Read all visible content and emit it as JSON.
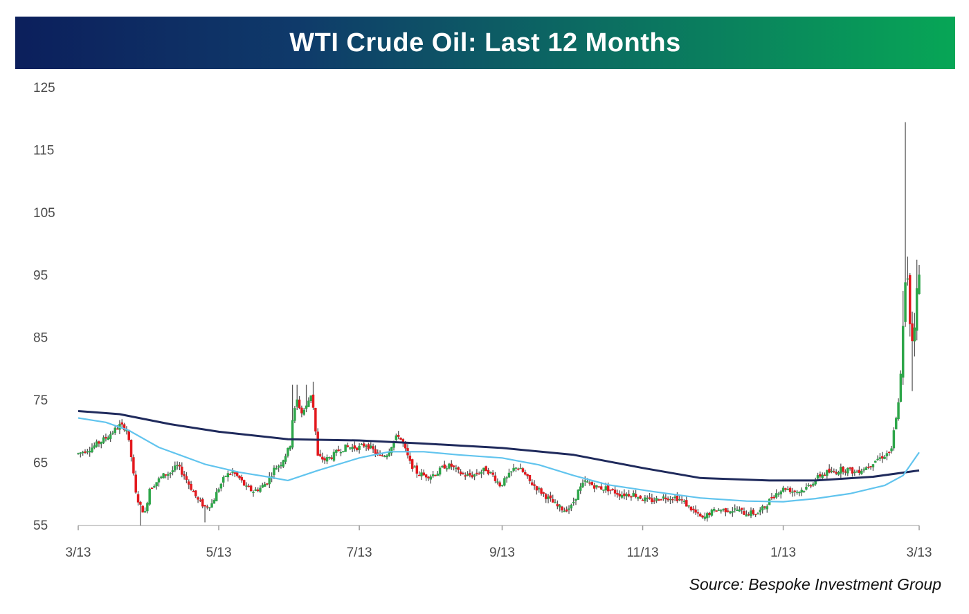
{
  "chart_data": {
    "type": "candlestick",
    "title": "WTI Crude Oil: Last 12 Months",
    "xlabel": "",
    "ylabel": "",
    "ylim": [
      55,
      125
    ],
    "yticks": [
      55,
      65,
      75,
      85,
      95,
      105,
      115,
      125
    ],
    "xticks": [
      {
        "label": "3/13",
        "day": 0
      },
      {
        "label": "5/13",
        "day": 61
      },
      {
        "label": "7/13",
        "day": 122
      },
      {
        "label": "9/13",
        "day": 184
      },
      {
        "label": "11/13",
        "day": 245
      },
      {
        "label": "1/13",
        "day": 306
      },
      {
        "label": "3/13",
        "day": 365
      }
    ],
    "grid": false,
    "colors": {
      "up": "#2ea64a",
      "down": "#e3191e",
      "wick": "#555555",
      "ma_long": "#1f2a5c",
      "ma_short": "#61c4ee"
    },
    "price_path": [
      [
        0,
        66.5
      ],
      [
        6,
        67.5
      ],
      [
        12,
        69
      ],
      [
        18,
        71
      ],
      [
        21,
        70.5
      ],
      [
        23,
        66
      ],
      [
        25,
        60
      ],
      [
        27,
        58
      ],
      [
        29,
        57
      ],
      [
        31,
        61
      ],
      [
        34,
        62
      ],
      [
        37,
        63
      ],
      [
        40,
        63.5
      ],
      [
        43,
        64.5
      ],
      [
        46,
        63
      ],
      [
        49,
        61
      ],
      [
        52,
        59
      ],
      [
        55,
        58
      ],
      [
        58,
        58.5
      ],
      [
        61,
        61
      ],
      [
        64,
        63
      ],
      [
        67,
        63.5
      ],
      [
        70,
        62.5
      ],
      [
        73,
        61
      ],
      [
        76,
        60.5
      ],
      [
        79,
        61
      ],
      [
        82,
        62
      ],
      [
        85,
        64
      ],
      [
        88,
        65
      ],
      [
        91,
        67
      ],
      [
        92,
        68
      ],
      [
        93,
        72
      ],
      [
        95,
        75
      ],
      [
        97,
        73
      ],
      [
        99,
        74
      ],
      [
        101,
        76
      ],
      [
        102,
        74
      ],
      [
        103,
        70
      ],
      [
        104,
        66
      ],
      [
        107,
        65.5
      ],
      [
        110,
        66
      ],
      [
        113,
        67
      ],
      [
        116,
        67.5
      ],
      [
        119,
        67.5
      ],
      [
        122,
        67.5
      ],
      [
        125,
        68
      ],
      [
        128,
        67
      ],
      [
        131,
        66
      ],
      [
        134,
        66.5
      ],
      [
        137,
        68.5
      ],
      [
        139,
        69.5
      ],
      [
        141,
        68
      ],
      [
        144,
        65
      ],
      [
        147,
        63.5
      ],
      [
        150,
        63
      ],
      [
        153,
        63
      ],
      [
        156,
        63.5
      ],
      [
        159,
        64.5
      ],
      [
        162,
        64.5
      ],
      [
        165,
        63.5
      ],
      [
        168,
        63
      ],
      [
        171,
        63
      ],
      [
        174,
        63.5
      ],
      [
        177,
        64
      ],
      [
        180,
        63
      ],
      [
        183,
        61.5
      ],
      [
        186,
        62.5
      ],
      [
        190,
        64.5
      ],
      [
        193,
        63.5
      ],
      [
        196,
        62
      ],
      [
        199,
        61
      ],
      [
        202,
        60
      ],
      [
        205,
        59
      ],
      [
        208,
        58
      ],
      [
        211,
        57.5
      ],
      [
        214,
        58
      ],
      [
        217,
        60.5
      ],
      [
        220,
        62
      ],
      [
        223,
        61.5
      ],
      [
        226,
        61
      ],
      [
        229,
        61
      ],
      [
        232,
        60.5
      ],
      [
        235,
        60
      ],
      [
        238,
        60
      ],
      [
        241,
        60
      ],
      [
        244,
        59.5
      ],
      [
        247,
        59
      ],
      [
        250,
        59
      ],
      [
        253,
        59.5
      ],
      [
        256,
        59.5
      ],
      [
        259,
        59.5
      ],
      [
        262,
        59
      ],
      [
        265,
        58
      ],
      [
        268,
        57
      ],
      [
        271,
        56
      ],
      [
        274,
        57
      ],
      [
        277,
        57.5
      ],
      [
        280,
        57.5
      ],
      [
        283,
        57.5
      ],
      [
        286,
        57.5
      ],
      [
        289,
        57
      ],
      [
        292,
        57
      ],
      [
        295,
        57
      ],
      [
        298,
        58
      ],
      [
        301,
        59.5
      ],
      [
        304,
        60.5
      ],
      [
        307,
        61
      ],
      [
        310,
        60.5
      ],
      [
        313,
        60.5
      ],
      [
        316,
        61
      ],
      [
        319,
        62
      ],
      [
        322,
        63
      ],
      [
        325,
        63.5
      ],
      [
        328,
        63.5
      ],
      [
        331,
        64
      ],
      [
        334,
        64
      ],
      [
        337,
        63.5
      ],
      [
        340,
        64
      ],
      [
        343,
        64.5
      ],
      [
        346,
        65.5
      ],
      [
        349,
        66
      ],
      [
        351,
        66.5
      ],
      [
        353,
        67
      ],
      [
        354,
        70
      ],
      [
        355,
        72
      ],
      [
        356,
        75
      ],
      [
        357,
        79
      ],
      [
        358,
        86
      ],
      [
        359,
        93
      ],
      [
        360,
        95
      ],
      [
        361,
        88
      ],
      [
        362,
        85
      ],
      [
        363,
        88
      ],
      [
        364,
        92
      ],
      [
        365,
        95
      ]
    ],
    "candle_spikes": [
      {
        "day": 93,
        "high": 77.5
      },
      {
        "day": 95,
        "high": 77.5
      },
      {
        "day": 99,
        "high": 77.5
      },
      {
        "day": 102,
        "high": 78
      },
      {
        "day": 27,
        "low": 55
      },
      {
        "day": 55,
        "low": 55.5
      },
      {
        "day": 359,
        "high": 119.5
      },
      {
        "day": 358,
        "high": 92.5
      },
      {
        "day": 360,
        "high": 98
      },
      {
        "day": 362,
        "low": 76.5
      },
      {
        "day": 364,
        "high": 97.5
      }
    ],
    "series": [
      {
        "type": "line",
        "color": "#1f2a5c",
        "values": [
          [
            0,
            73.3
          ],
          [
            18,
            72.8
          ],
          [
            40,
            71.2
          ],
          [
            61,
            70
          ],
          [
            91,
            68.8
          ],
          [
            122,
            68.6
          ],
          [
            150,
            68.1
          ],
          [
            184,
            67.4
          ],
          [
            215,
            66.3
          ],
          [
            245,
            64.2
          ],
          [
            270,
            62.6
          ],
          [
            300,
            62.2
          ],
          [
            320,
            62.2
          ],
          [
            345,
            62.8
          ],
          [
            365,
            63.8
          ]
        ]
      },
      {
        "type": "line",
        "color": "#61c4ee",
        "values": [
          [
            0,
            72.2
          ],
          [
            12,
            71.5
          ],
          [
            22,
            70.2
          ],
          [
            35,
            67.5
          ],
          [
            55,
            64.8
          ],
          [
            70,
            63.5
          ],
          [
            82,
            62.8
          ],
          [
            91,
            62.2
          ],
          [
            104,
            63.8
          ],
          [
            122,
            65.8
          ],
          [
            135,
            66.8
          ],
          [
            150,
            66.8
          ],
          [
            165,
            66.3
          ],
          [
            184,
            65.8
          ],
          [
            200,
            64.7
          ],
          [
            215,
            63
          ],
          [
            230,
            61.5
          ],
          [
            250,
            60.4
          ],
          [
            270,
            59.4
          ],
          [
            290,
            58.9
          ],
          [
            306,
            58.8
          ],
          [
            320,
            59.3
          ],
          [
            335,
            60.1
          ],
          [
            350,
            61.4
          ],
          [
            358,
            63
          ],
          [
            365,
            66.7
          ]
        ]
      }
    ]
  },
  "source": "Source: Bespoke Investment Group"
}
